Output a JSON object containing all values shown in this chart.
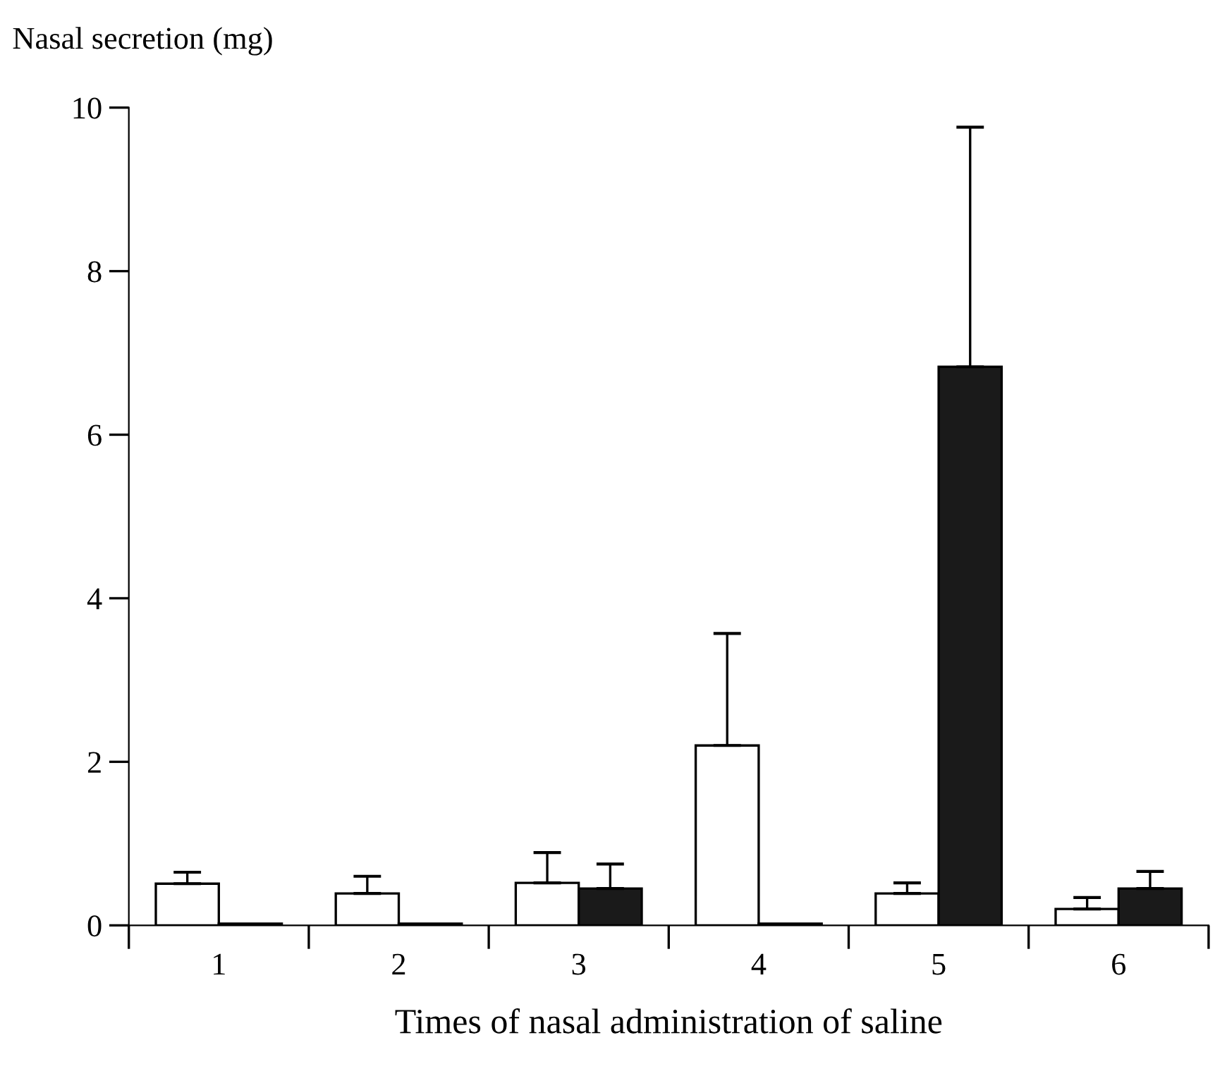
{
  "chart_data": {
    "type": "bar",
    "ylabel": "Nasal secretion (mg)",
    "xlabel": "Times of nasal administration of saline",
    "categories": [
      "1",
      "2",
      "3",
      "4",
      "5",
      "6"
    ],
    "series": [
      {
        "color": "#ffffff",
        "values": [
          0.51,
          0.39,
          0.52,
          2.2,
          0.39,
          0.2
        ],
        "errors": [
          [
            0.51,
            0.65
          ],
          [
            0.39,
            0.6
          ],
          [
            0.52,
            0.89
          ],
          [
            2.2,
            3.57
          ],
          [
            0.39,
            0.52
          ],
          [
            0.2,
            0.34
          ]
        ]
      },
      {
        "color": "#1a1a1a",
        "values": [
          0.02,
          0.02,
          0.45,
          0.02,
          6.83,
          0.45
        ],
        "errors": [
          null,
          null,
          [
            0.45,
            0.75
          ],
          null,
          [
            6.83,
            9.76
          ],
          [
            0.45,
            0.66
          ]
        ]
      }
    ],
    "ylim": [
      0,
      10
    ],
    "yticks": [
      0,
      2,
      4,
      6,
      8,
      10
    ],
    "grid": false,
    "legend": false
  }
}
